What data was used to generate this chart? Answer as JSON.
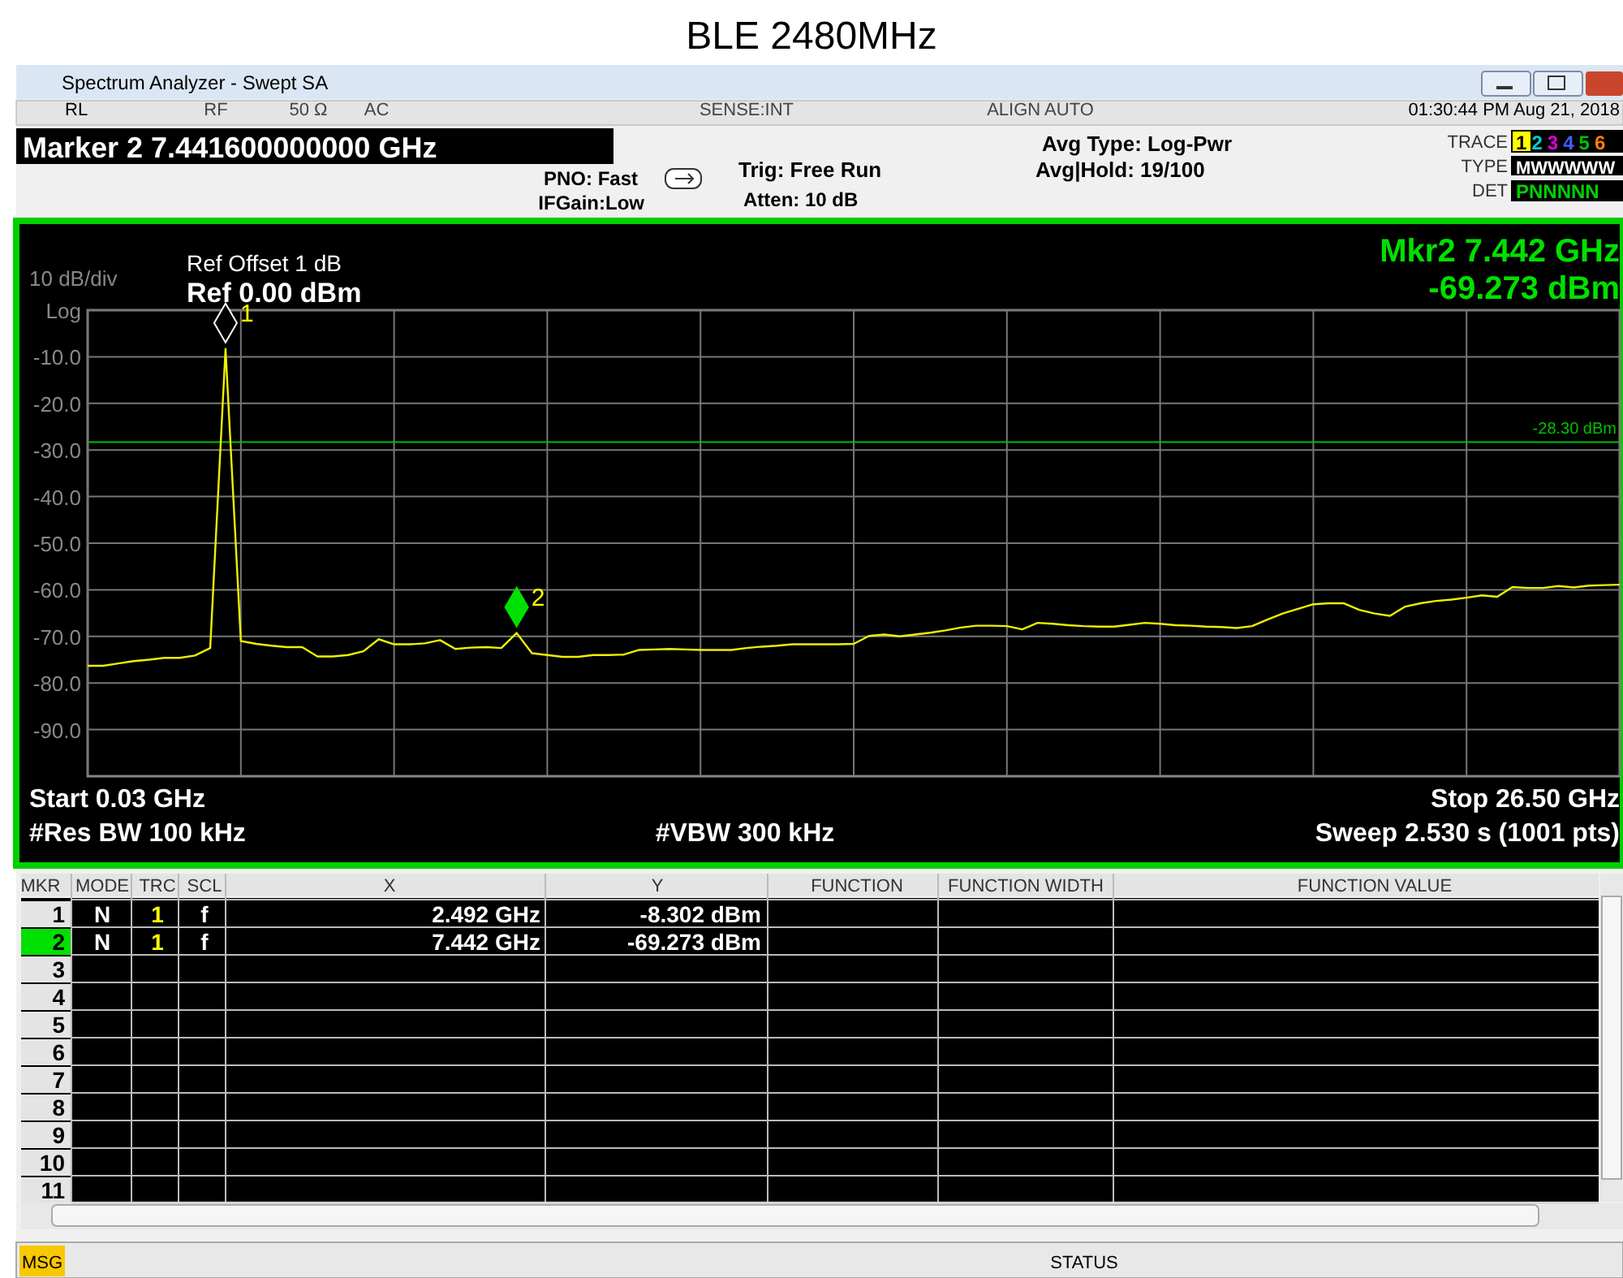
{
  "chart_data": {
    "type": "line",
    "title": "BLE 2480MHz",
    "categories": [
      null,
      null,
      null,
      null,
      null,
      null,
      null,
      null,
      null,
      null,
      null,
      null,
      null,
      null,
      null,
      null,
      null,
      null,
      null,
      null,
      null,
      null,
      null,
      null,
      null,
      null,
      null,
      null,
      null,
      null,
      null,
      null,
      null,
      null,
      null,
      null,
      null,
      null,
      null,
      null,
      null,
      null,
      null,
      null,
      null,
      null,
      null,
      null,
      null,
      null,
      null,
      null,
      null,
      null,
      null,
      null,
      null,
      null,
      null,
      null,
      null,
      null,
      null,
      null,
      null,
      null,
      null,
      null,
      null,
      null,
      null,
      null,
      null,
      null,
      null,
      null,
      null,
      null,
      null,
      null,
      null,
      null,
      null,
      null,
      null,
      null,
      null,
      null,
      null,
      null,
      null,
      null,
      null,
      null,
      null,
      null,
      null,
      null,
      null,
      null,
      null
    ],
    "ylim": [
      -100,
      0
    ],
    "yticks": [
      {
        "value": 0,
        "label": "Log"
      },
      {
        "value": -10,
        "label": "-10.0"
      },
      {
        "value": -20,
        "label": "-20.0"
      },
      {
        "value": -30,
        "label": "-30.0"
      },
      {
        "value": -40,
        "label": "-40.0"
      },
      {
        "value": -50,
        "label": "-50.0"
      },
      {
        "value": -60,
        "label": "-60.0"
      },
      {
        "value": -70,
        "label": "-70.0"
      },
      {
        "value": -80,
        "label": "-80.0"
      },
      {
        "value": -90,
        "label": "-90.0"
      }
    ],
    "tick_labels": "y",
    "grid": true,
    "line_style": "solid",
    "series": [
      {
        "color": "#f0f000",
        "values": [
          -76.3,
          -76.3,
          -75.8,
          -75.3,
          -75,
          -74.6,
          -74.6,
          -74.1,
          -72.5,
          -8.302,
          -71,
          -71.6,
          -72,
          -72.3,
          -72.3,
          -74.3,
          -74.3,
          -74,
          -73.2,
          -70.6,
          -71.7,
          -71.7,
          -71.5,
          -70.8,
          -72.7,
          -72.4,
          -72.3,
          -72.5,
          -69.273,
          -73.6,
          -74,
          -74.4,
          -74.4,
          -74,
          -74,
          -73.9,
          -72.9,
          -72.8,
          -72.7,
          -72.8,
          -72.9,
          -72.9,
          -72.9,
          -72.5,
          -72.2,
          -72,
          -71.7,
          -71.7,
          -71.7,
          -71.7,
          -71.6,
          -69.9,
          -69.6,
          -70,
          -69.6,
          -69.2,
          -68.7,
          -68.1,
          -67.7,
          -67.7,
          -67.8,
          -68.5,
          -67.1,
          -67.3,
          -67.6,
          -67.8,
          -67.9,
          -67.9,
          -67.5,
          -67.1,
          -67.3,
          -67.6,
          -67.7,
          -67.9,
          -68,
          -68.2,
          -67.8,
          -66.4,
          -65.1,
          -64.1,
          -63.1,
          -62.9,
          -62.9,
          -64.3,
          -65.1,
          -65.6,
          -63.6,
          -62.9,
          -62.4,
          -62.1,
          -61.7,
          -61.2,
          -61.5,
          -59.4,
          -59.6,
          -59.6,
          -59.2,
          -59.5,
          -59.1,
          -59,
          -58.9
        ]
      }
    ],
    "ref_lines": [
      {
        "axis": "y",
        "value": -28.3,
        "label": "-28.30 dBm",
        "color": "#00c000"
      }
    ],
    "annotations": [
      "1",
      "2",
      "Spectrum Analyzer - Swept SA",
      "RL",
      "RF",
      "50 Ω",
      "AC",
      "SENSE:INT",
      "ALIGN AUTO",
      "01:30:44 PM Aug 21, 2018",
      "Marker 2 7.441600000000 GHz",
      "PNO: Fast",
      "IFGain:Low",
      "Trig: Free Run",
      "Atten: 10 dB",
      "Avg Type: Log-Pwr",
      "Avg|Hold: 19/100",
      "TRACE",
      "123456",
      "TYPE",
      "MWWWWW",
      "DET",
      "PNNNNN",
      "Ref Offset 1 dB",
      "Ref 0.00 dBm",
      "10 dB/div",
      "Mkr2 7.442 GHz",
      "-69.273 dBm",
      "Start 0.03 GHz",
      "Stop 26.50 GHz",
      "#Res BW 100 kHz",
      "#VBW 300 kHz",
      "Sweep  2.530 s (1001 pts)",
      "MKR",
      "MODE",
      "TRC",
      "SCL",
      "X",
      "Y",
      "FUNCTION",
      "FUNCTION WIDTH",
      "FUNCTION VALUE",
      "1",
      "N",
      "1",
      "f",
      "2.492 GHz",
      "-8.302 dBm",
      "2",
      "N",
      "1",
      "f",
      "7.442 GHz",
      "-69.273 dBm",
      "3",
      "4",
      "5",
      "6",
      "7",
      "8",
      "9",
      "10",
      "11",
      "MSG",
      "STATUS"
    ]
  }
}
